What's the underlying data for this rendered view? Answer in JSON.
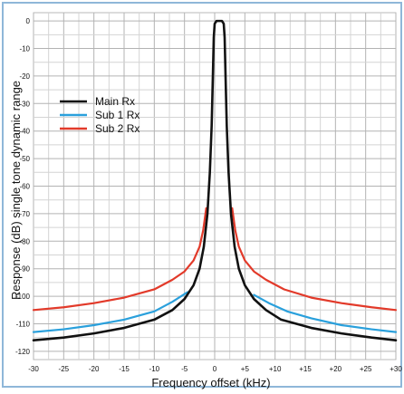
{
  "chart_data": {
    "type": "line",
    "title": "",
    "xlabel": "Frequency offset (kHz)",
    "ylabel": "Response (dB) single tone dynamic range",
    "xlim": [
      -30,
      30
    ],
    "ylim": [
      -123,
      3
    ],
    "x_ticks": [
      {
        "value": -30,
        "label": "-30"
      },
      {
        "value": -25,
        "label": "-25"
      },
      {
        "value": -20,
        "label": "-20"
      },
      {
        "value": -15,
        "label": "-15"
      },
      {
        "value": -10,
        "label": "-10"
      },
      {
        "value": -5,
        "label": "-5"
      },
      {
        "value": 0,
        "label": "0"
      },
      {
        "value": 5,
        "label": "+5"
      },
      {
        "value": 10,
        "label": "+10"
      },
      {
        "value": 15,
        "label": "+15"
      },
      {
        "value": 20,
        "label": "+20"
      },
      {
        "value": 25,
        "label": "+25"
      },
      {
        "value": 30,
        "label": "+30"
      }
    ],
    "y_ticks": [
      {
        "value": 0,
        "label": "0"
      },
      {
        "value": -10,
        "label": "-10"
      },
      {
        "value": -20,
        "label": "-20"
      },
      {
        "value": -30,
        "label": "-30"
      },
      {
        "value": -40,
        "label": "-40"
      },
      {
        "value": -50,
        "label": "-50"
      },
      {
        "value": -60,
        "label": "-60"
      },
      {
        "value": -70,
        "label": "-70"
      },
      {
        "value": -80,
        "label": "-80"
      },
      {
        "value": -90,
        "label": "-90"
      },
      {
        "value": -100,
        "label": "-100"
      },
      {
        "value": -110,
        "label": "-110"
      },
      {
        "value": -120,
        "label": "-120"
      }
    ],
    "grid": true,
    "legend_position": "top-left",
    "series": [
      {
        "name": "Main Rx",
        "color": "#111111",
        "points": [
          [
            -30,
            -116
          ],
          [
            -25,
            -115
          ],
          [
            -20,
            -113.5
          ],
          [
            -15,
            -111.5
          ],
          [
            -10,
            -108.5
          ],
          [
            -7,
            -105
          ],
          [
            -5,
            -101
          ],
          [
            -3.5,
            -96
          ],
          [
            -2.5,
            -90
          ],
          [
            -1.8,
            -82
          ],
          [
            -1.2,
            -70
          ],
          [
            -0.8,
            -55
          ],
          [
            -0.5,
            -38
          ],
          [
            -0.3,
            -20
          ],
          [
            -0.15,
            -6
          ],
          [
            0,
            -1
          ],
          [
            0.3,
            0
          ],
          [
            1.2,
            0
          ],
          [
            1.5,
            -1
          ],
          [
            1.65,
            -6
          ],
          [
            1.8,
            -20
          ],
          [
            2.0,
            -38
          ],
          [
            2.3,
            -55
          ],
          [
            2.7,
            -70
          ],
          [
            3.3,
            -82
          ],
          [
            4.0,
            -90
          ],
          [
            5.0,
            -96
          ],
          [
            6.5,
            -101
          ],
          [
            8.5,
            -105
          ],
          [
            11,
            -108.5
          ],
          [
            16,
            -111.5
          ],
          [
            21,
            -113.5
          ],
          [
            26,
            -115
          ],
          [
            30,
            -116
          ]
        ]
      },
      {
        "name": "Sub 1 Rx",
        "color": "#2aa0dc",
        "points": [
          [
            -30,
            -113
          ],
          [
            -25,
            -112
          ],
          [
            -20,
            -110.5
          ],
          [
            -15,
            -108.5
          ],
          [
            -10,
            -105.5
          ],
          [
            -7,
            -102
          ],
          [
            -4.5,
            -98.5
          ]
        ],
        "points_right": [
          [
            6.5,
            -99.5
          ],
          [
            9,
            -102.5
          ],
          [
            12,
            -105.5
          ],
          [
            16,
            -108
          ],
          [
            21,
            -110.5
          ],
          [
            26,
            -112
          ],
          [
            30,
            -113
          ]
        ]
      },
      {
        "name": "Sub 2 Rx",
        "color": "#e23a2a",
        "points": [
          [
            -30,
            -105
          ],
          [
            -25,
            -104
          ],
          [
            -20,
            -102.5
          ],
          [
            -15,
            -100.5
          ],
          [
            -10,
            -97.5
          ],
          [
            -7,
            -94
          ],
          [
            -5,
            -91
          ],
          [
            -3.5,
            -87
          ],
          [
            -2.5,
            -82
          ],
          [
            -1.9,
            -76
          ],
          [
            -1.4,
            -68
          ]
        ],
        "points_right": [
          [
            2.9,
            -68
          ],
          [
            3.4,
            -76
          ],
          [
            4.0,
            -82
          ],
          [
            5.0,
            -87
          ],
          [
            6.5,
            -91
          ],
          [
            8.5,
            -94
          ],
          [
            11.5,
            -97.5
          ],
          [
            16,
            -100.5
          ],
          [
            21,
            -102.5
          ],
          [
            26,
            -104
          ],
          [
            30,
            -105
          ]
        ]
      }
    ]
  }
}
